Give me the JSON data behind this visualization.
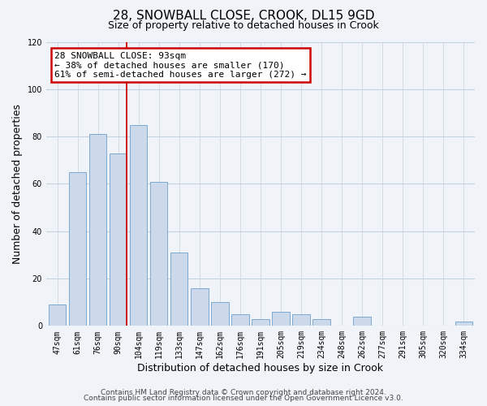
{
  "title": "28, SNOWBALL CLOSE, CROOK, DL15 9GD",
  "subtitle": "Size of property relative to detached houses in Crook",
  "xlabel": "Distribution of detached houses by size in Crook",
  "ylabel": "Number of detached properties",
  "bar_labels": [
    "47sqm",
    "61sqm",
    "76sqm",
    "90sqm",
    "104sqm",
    "119sqm",
    "133sqm",
    "147sqm",
    "162sqm",
    "176sqm",
    "191sqm",
    "205sqm",
    "219sqm",
    "234sqm",
    "248sqm",
    "262sqm",
    "277sqm",
    "291sqm",
    "305sqm",
    "320sqm",
    "334sqm"
  ],
  "bar_heights": [
    9,
    65,
    81,
    73,
    85,
    61,
    31,
    16,
    10,
    5,
    3,
    6,
    5,
    3,
    0,
    4,
    0,
    0,
    0,
    0,
    2
  ],
  "bar_color": "#ccd9ea",
  "bar_edge_color": "#7ca9d2",
  "ylim": [
    0,
    120
  ],
  "yticks": [
    0,
    20,
    40,
    60,
    80,
    100,
    120
  ],
  "marker_label_line1": "28 SNOWBALL CLOSE: 93sqm",
  "marker_label_line2": "← 38% of detached houses are smaller (170)",
  "marker_label_line3": "61% of semi-detached houses are larger (272) →",
  "marker_color": "#cc0000",
  "annotation_box_edge": "#cc0000",
  "footer_line1": "Contains HM Land Registry data © Crown copyright and database right 2024.",
  "footer_line2": "Contains public sector information licensed under the Open Government Licence v3.0.",
  "background_color": "#f0f4f8",
  "plot_bg_color": "#f0f4f8",
  "grid_color": "#c5d3e0",
  "title_fontsize": 11,
  "subtitle_fontsize": 9,
  "axis_label_fontsize": 9,
  "tick_fontsize": 7,
  "footer_fontsize": 6.5,
  "annotation_fontsize": 8
}
